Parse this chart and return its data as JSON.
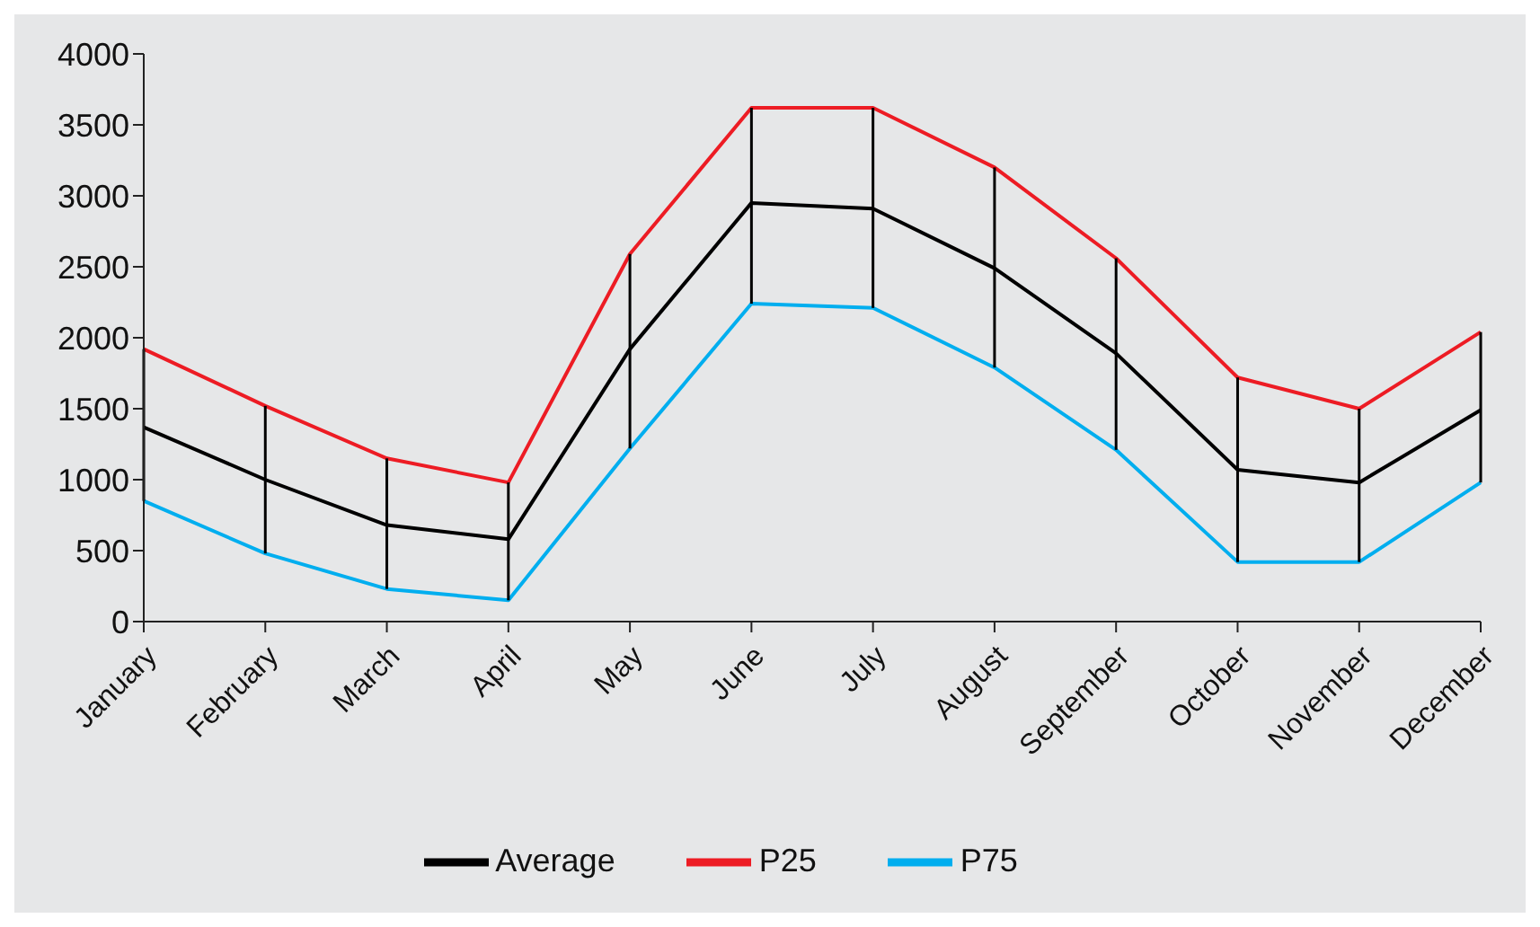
{
  "chart_data": {
    "type": "line",
    "categories": [
      "January",
      "February",
      "March",
      "April",
      "May",
      "June",
      "July",
      "August",
      "September",
      "October",
      "November",
      "December"
    ],
    "series": [
      {
        "name": "P75",
        "color": "#00aeef",
        "values": [
          850,
          480,
          230,
          150,
          1220,
          2240,
          2210,
          1790,
          1210,
          420,
          420,
          980
        ]
      },
      {
        "name": "P25",
        "color": "#ed1c24",
        "values": [
          1920,
          1520,
          1150,
          980,
          2590,
          3620,
          3620,
          3200,
          2560,
          1720,
          1500,
          2040
        ]
      },
      {
        "name": "Average",
        "color": "#000000",
        "values": [
          1370,
          1000,
          680,
          580,
          1920,
          2950,
          2910,
          2490,
          1890,
          1070,
          980,
          1490
        ],
        "errors": [
          [
            850,
            1920
          ],
          [
            480,
            1520
          ],
          [
            230,
            1150
          ],
          [
            150,
            980
          ],
          [
            1220,
            2590
          ],
          [
            2240,
            3620
          ],
          [
            2210,
            3620
          ],
          [
            1790,
            3200
          ],
          [
            1210,
            2560
          ],
          [
            420,
            1720
          ],
          [
            420,
            1500
          ],
          [
            980,
            2040
          ]
        ]
      }
    ],
    "ylim": [
      0,
      4000
    ],
    "yticks": [
      0,
      500,
      1000,
      1500,
      2000,
      2500,
      3000,
      3500,
      4000
    ],
    "grid": false,
    "legend": "bottom",
    "marker": "none",
    "line_style": "solid"
  }
}
